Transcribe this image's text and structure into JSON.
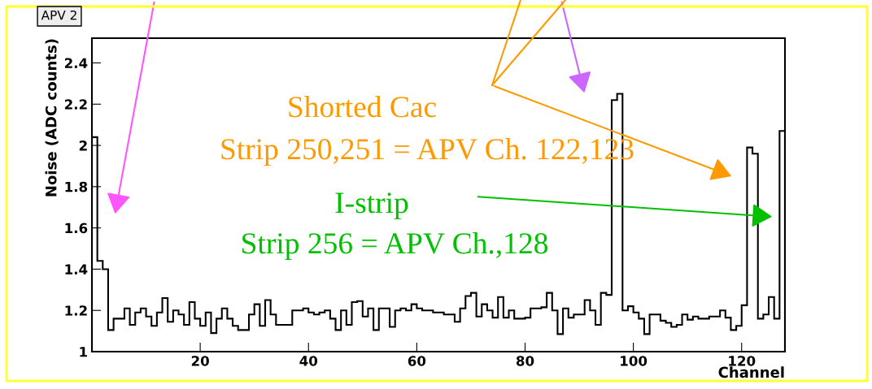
{
  "chart_data": {
    "type": "histogram",
    "title": "APV 2",
    "xlabel": "Channel",
    "ylabel": "Noise (ADC counts)",
    "bins": [
      0,
      1,
      2,
      3,
      4,
      5,
      6,
      7,
      8,
      9,
      10,
      11,
      12,
      13,
      14,
      15,
      16,
      17,
      18,
      19,
      20,
      21,
      22,
      23,
      24,
      25,
      26,
      27,
      28,
      29,
      30,
      31,
      32,
      33,
      34,
      35,
      36,
      37,
      38,
      39,
      40,
      41,
      42,
      43,
      44,
      45,
      46,
      47,
      48,
      49,
      50,
      51,
      52,
      53,
      54,
      55,
      56,
      57,
      58,
      59,
      60,
      61,
      62,
      63,
      64,
      65,
      66,
      67,
      68,
      69,
      70,
      71,
      72,
      73,
      74,
      75,
      76,
      77,
      78,
      79,
      80,
      81,
      82,
      83,
      84,
      85,
      86,
      87,
      88,
      89,
      90,
      91,
      92,
      93,
      94,
      95,
      96,
      97,
      98,
      99,
      100,
      101,
      102,
      103,
      104,
      105,
      106,
      107,
      108,
      109,
      110,
      111,
      112,
      113,
      114,
      115,
      116,
      117,
      118,
      119,
      120,
      121,
      122,
      123,
      124,
      125,
      126,
      127,
      128
    ],
    "values": [
      2.04,
      1.44,
      1.4,
      1.105,
      1.16,
      1.16,
      1.21,
      1.13,
      1.19,
      1.21,
      1.17,
      1.125,
      1.19,
      1.26,
      1.145,
      1.2,
      1.18,
      1.13,
      1.24,
      1.16,
      1.125,
      1.19,
      1.09,
      1.16,
      1.21,
      1.16,
      1.125,
      1.105,
      1.105,
      1.18,
      1.23,
      1.125,
      1.25,
      1.18,
      1.13,
      1.13,
      1.13,
      1.2,
      1.2,
      1.21,
      1.19,
      1.18,
      1.19,
      1.2,
      1.16,
      1.105,
      1.2,
      1.13,
      1.24,
      1.245,
      1.17,
      1.21,
      1.105,
      1.21,
      1.21,
      1.12,
      1.2,
      1.21,
      1.2,
      1.23,
      1.21,
      1.2,
      1.2,
      1.19,
      1.19,
      1.18,
      1.18,
      1.145,
      1.21,
      1.27,
      1.285,
      1.17,
      1.23,
      1.2,
      1.165,
      1.265,
      1.165,
      1.2,
      1.16,
      1.16,
      1.165,
      1.21,
      1.21,
      1.215,
      1.285,
      1.2,
      1.085,
      1.21,
      1.165,
      1.18,
      1.18,
      1.25,
      1.2,
      1.13,
      1.285,
      1.275,
      2.22,
      2.25,
      1.2,
      1.22,
      1.19,
      1.16,
      1.085,
      1.18,
      1.18,
      1.15,
      1.14,
      1.12,
      1.13,
      1.18,
      1.155,
      1.17,
      1.16,
      1.16,
      1.17,
      1.17,
      1.2,
      1.165,
      1.105,
      1.125,
      1.225,
      1.99,
      1.96,
      1.16,
      1.18,
      1.265,
      1.16,
      2.07
    ],
    "color": "#000000",
    "xlim": [
      0,
      128
    ],
    "xticks": [
      20,
      40,
      60,
      80,
      100,
      120
    ],
    "ylim": [
      1,
      2.52
    ],
    "yticks": [
      1,
      1.2,
      1.4,
      1.6,
      1.8,
      2,
      2.2,
      2.4
    ],
    "grid": false,
    "annotations": [
      "Shorted Cac",
      "Strip 250,251 = APV Ch. 122,123",
      "I-strip",
      "Strip 256 = APV Ch.,128"
    ]
  }
}
